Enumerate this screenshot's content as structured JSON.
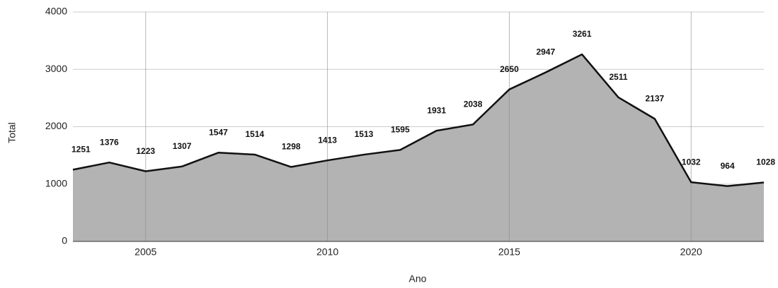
{
  "chart_data": {
    "type": "area",
    "x": [
      2003,
      2004,
      2005,
      2006,
      2007,
      2008,
      2009,
      2010,
      2011,
      2012,
      2013,
      2014,
      2015,
      2016,
      2017,
      2018,
      2019,
      2020,
      2021,
      2022
    ],
    "values": [
      1251,
      1376,
      1223,
      1307,
      1547,
      1514,
      1298,
      1413,
      1513,
      1595,
      1931,
      2038,
      2650,
      2947,
      3261,
      2511,
      2137,
      1032,
      964,
      1028
    ],
    "color": "#b3b3b3",
    "line_color": "#111111",
    "xlabel": "Ano",
    "ylabel": "Total",
    "xlim": [
      2003,
      2022
    ],
    "xticks": [
      2005,
      2010,
      2015,
      2020
    ],
    "ylim": [
      0,
      4000
    ],
    "yticks": [
      0,
      1000,
      2000,
      3000,
      4000
    ],
    "grid": true
  }
}
